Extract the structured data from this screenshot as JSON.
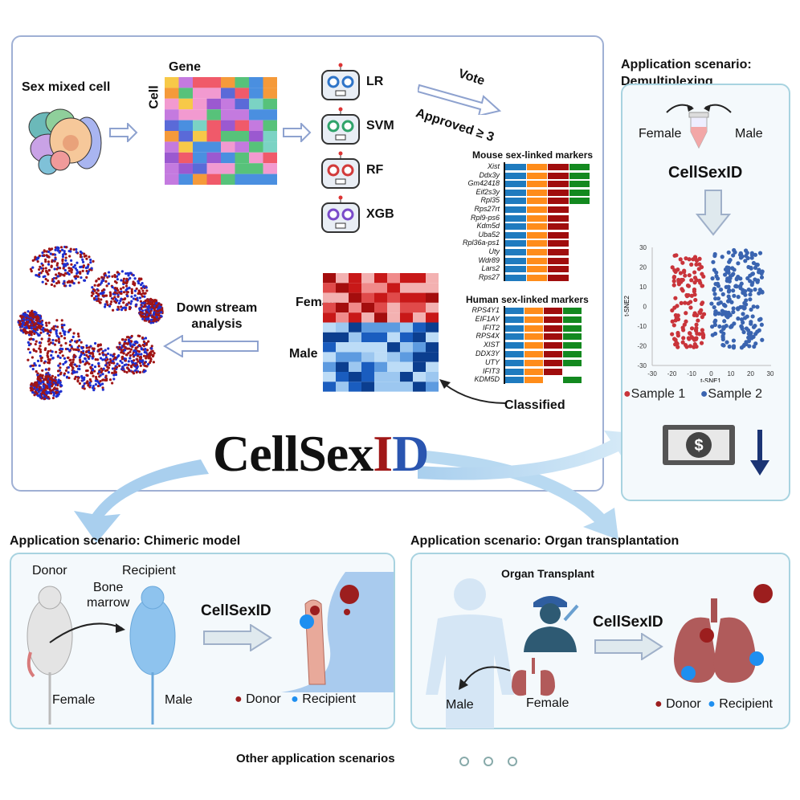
{
  "logo": {
    "part1": "CellSex",
    "part2": "I",
    "part3": "D"
  },
  "main": {
    "sex_mixed_cell": "Sex mixed cell",
    "gene": "Gene",
    "cell": "Cell",
    "models": [
      "LR",
      "SVM",
      "RF",
      "XGB"
    ],
    "vote": "Vote",
    "approved": "Approved ≥ 3",
    "female": "Female",
    "male": "Male",
    "classified": "Classified",
    "downstream": "Down stream analysis",
    "mouse_title": "Mouse sex-linked markers",
    "mouse_markers": [
      {
        "name": "Xist",
        "n": 4
      },
      {
        "name": "Ddx3y",
        "n": 4
      },
      {
        "name": "Gm42418",
        "n": 4
      },
      {
        "name": "Eif2s3y",
        "n": 4
      },
      {
        "name": "Rpl35",
        "n": 4
      },
      {
        "name": "Rps27rt",
        "n": 3
      },
      {
        "name": "Rpl9-ps6",
        "n": 3
      },
      {
        "name": "Kdm5d",
        "n": 3
      },
      {
        "name": "Uba52",
        "n": 3
      },
      {
        "name": "Rpl36a-ps1",
        "n": 3
      },
      {
        "name": "Uty",
        "n": 3
      },
      {
        "name": "Wdr89",
        "n": 3
      },
      {
        "name": "Lars2",
        "n": 3
      },
      {
        "name": "Rps27",
        "n": 3
      }
    ],
    "human_title": "Human sex-linked markers",
    "human_markers": [
      {
        "name": "RPS4Y1",
        "m": [
          1,
          1,
          1,
          1
        ]
      },
      {
        "name": "EIF1AY",
        "m": [
          1,
          1,
          1,
          1
        ]
      },
      {
        "name": "IFIT2",
        "m": [
          1,
          1,
          1,
          1
        ]
      },
      {
        "name": "RPS4X",
        "m": [
          1,
          1,
          1,
          1
        ]
      },
      {
        "name": "XIST",
        "m": [
          1,
          1,
          1,
          1
        ]
      },
      {
        "name": "DDX3Y",
        "m": [
          1,
          1,
          1,
          1
        ]
      },
      {
        "name": "UTY",
        "m": [
          1,
          1,
          1,
          1
        ]
      },
      {
        "name": "IFIT3",
        "m": [
          1,
          1,
          1,
          0
        ]
      },
      {
        "name": "KDM5D",
        "m": [
          1,
          1,
          0,
          1
        ]
      }
    ],
    "model_colors": [
      "#1f7bbf",
      "#ff8c1a",
      "#a00d0d",
      "#13891f"
    ]
  },
  "demux": {
    "title": "Application scenario:\nDemultiplexing",
    "female": "Female",
    "male": "Male",
    "tool": "CellSexID",
    "tsne": {
      "xlabel": "t-SNE1",
      "ylabel": "t-SNE2",
      "xticks": [
        "-30",
        "-20",
        "-10",
        "0",
        "10",
        "20",
        "30"
      ],
      "yticks": [
        "30",
        "20",
        "10",
        "0",
        "-10",
        "-20",
        "-30"
      ]
    },
    "legend": [
      "Sample 1",
      "Sample 2"
    ],
    "colors": [
      "#c9343a",
      "#3a64b0"
    ]
  },
  "chimeric": {
    "title": "Application scenario: Chimeric model",
    "donor": "Donor",
    "recipient": "Recipient",
    "bone_marrow": "Bone\nmarrow",
    "tool": "CellSexID",
    "female": "Female",
    "male": "Male",
    "legend": [
      "Donor",
      "Recipient"
    ]
  },
  "organ": {
    "title": "Application scenario: Organ transplantation",
    "subtitle": "Organ Transplant",
    "tool": "CellSexID",
    "male": "Male",
    "female": "Female",
    "legend": [
      "Donor",
      "Recipient"
    ]
  },
  "other": "Other application scenarios"
}
